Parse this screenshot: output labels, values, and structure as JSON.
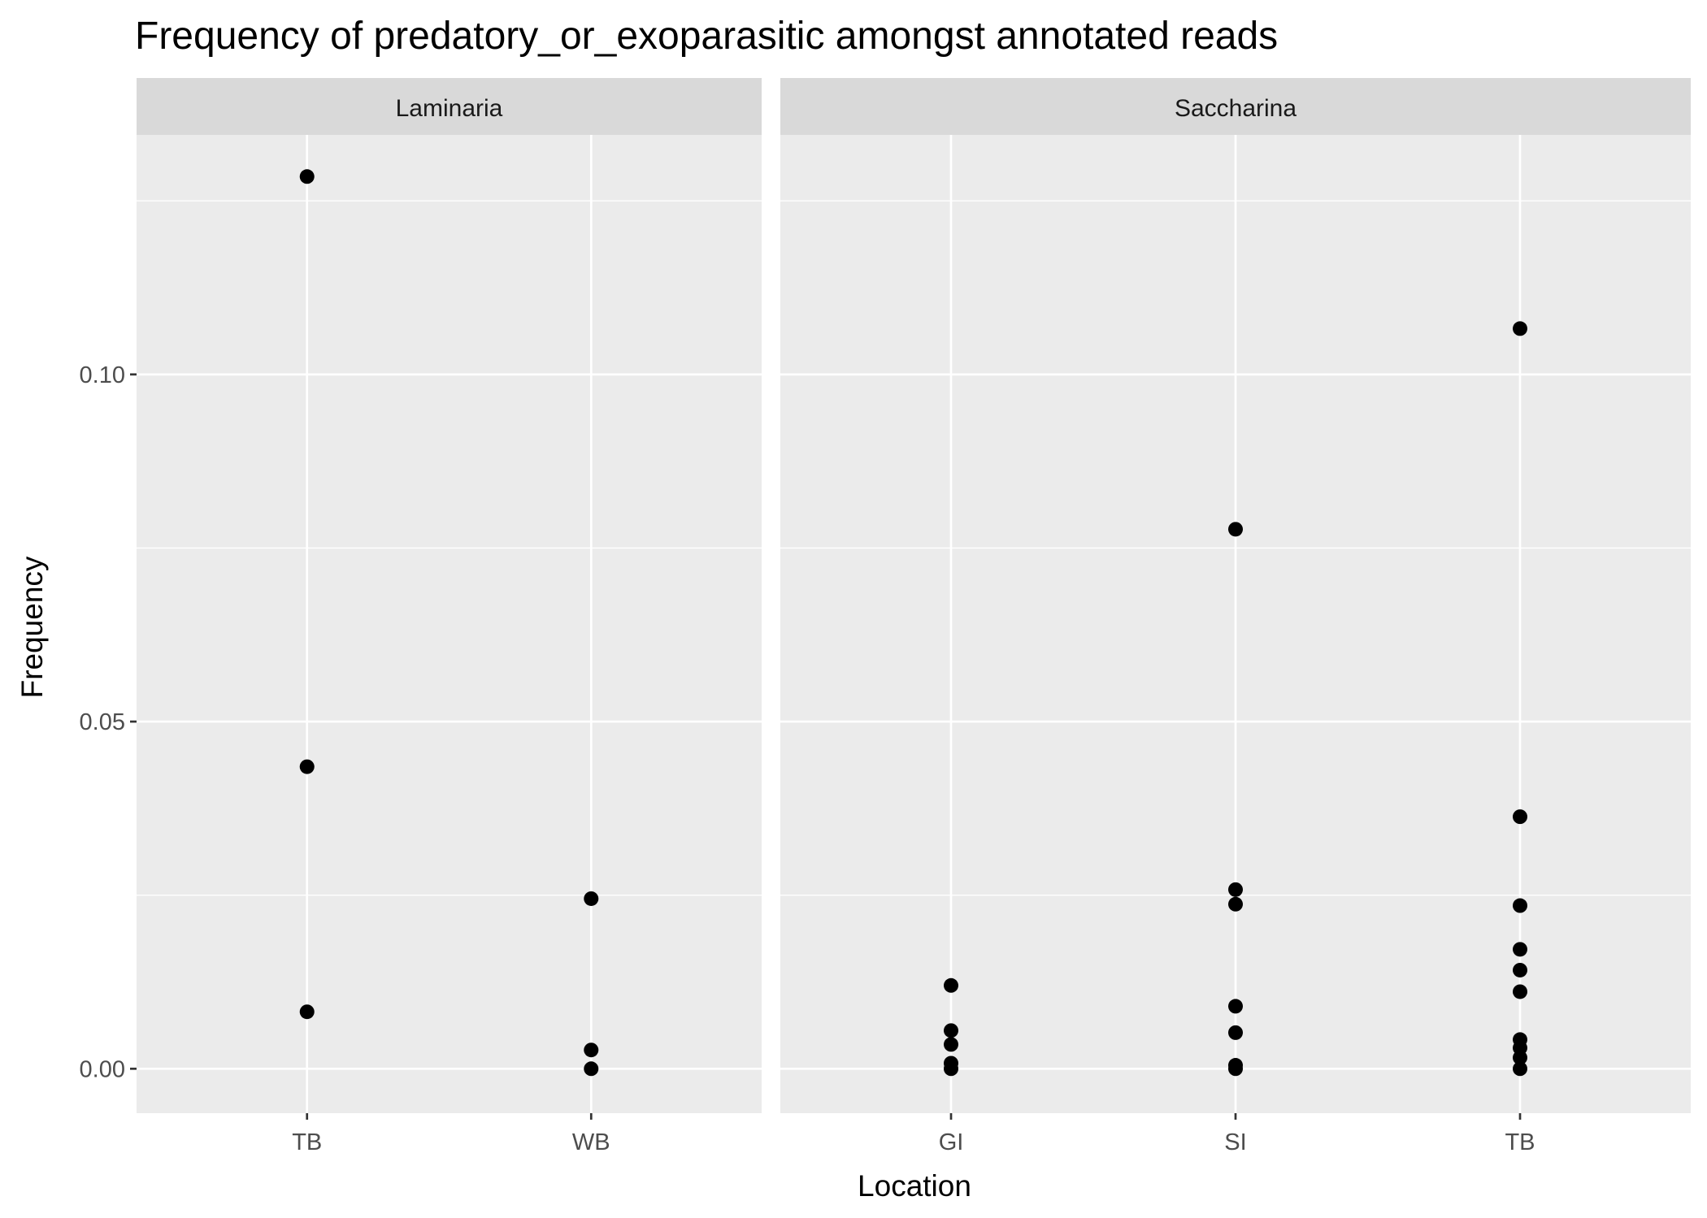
{
  "chart_data": {
    "type": "scatter",
    "title": "Frequency of predatory_or_exoparasitic amongst annotated reads",
    "xlabel": "Location",
    "ylabel": "Frequency",
    "ylim": [
      -0.0064,
      0.1345
    ],
    "yticks": [
      0.0,
      0.05,
      0.1
    ],
    "ytick_labels": [
      "0.00",
      "0.05",
      "0.10"
    ],
    "grid": true,
    "point_color": "#000000",
    "panel_background": "#ebebeb",
    "strip_background": "#d9d9d9",
    "panels": [
      {
        "strip": "Laminaria",
        "categories": [
          "TB",
          "WB"
        ],
        "points": [
          {
            "x": "TB",
            "y": 0.1285
          },
          {
            "x": "TB",
            "y": 0.0435
          },
          {
            "x": "TB",
            "y": 0.0082
          },
          {
            "x": "WB",
            "y": 0.0245
          },
          {
            "x": "WB",
            "y": 0.0027
          },
          {
            "x": "WB",
            "y": 0.0
          }
        ]
      },
      {
        "strip": "Saccharina",
        "categories": [
          "GI",
          "SI",
          "TB"
        ],
        "points": [
          {
            "x": "GI",
            "y": 0.012
          },
          {
            "x": "GI",
            "y": 0.0055
          },
          {
            "x": "GI",
            "y": 0.0035
          },
          {
            "x": "GI",
            "y": 0.0008
          },
          {
            "x": "GI",
            "y": 0.0
          },
          {
            "x": "SI",
            "y": 0.0777
          },
          {
            "x": "SI",
            "y": 0.0258
          },
          {
            "x": "SI",
            "y": 0.0237
          },
          {
            "x": "SI",
            "y": 0.009
          },
          {
            "x": "SI",
            "y": 0.0052
          },
          {
            "x": "SI",
            "y": 0.0005
          },
          {
            "x": "SI",
            "y": 0.0
          },
          {
            "x": "TB",
            "y": 0.1066
          },
          {
            "x": "TB",
            "y": 0.0363
          },
          {
            "x": "TB",
            "y": 0.0235
          },
          {
            "x": "TB",
            "y": 0.0172
          },
          {
            "x": "TB",
            "y": 0.0142
          },
          {
            "x": "TB",
            "y": 0.0111
          },
          {
            "x": "TB",
            "y": 0.0042
          },
          {
            "x": "TB",
            "y": 0.003
          },
          {
            "x": "TB",
            "y": 0.0016
          },
          {
            "x": "TB",
            "y": 0.0
          }
        ]
      }
    ]
  }
}
